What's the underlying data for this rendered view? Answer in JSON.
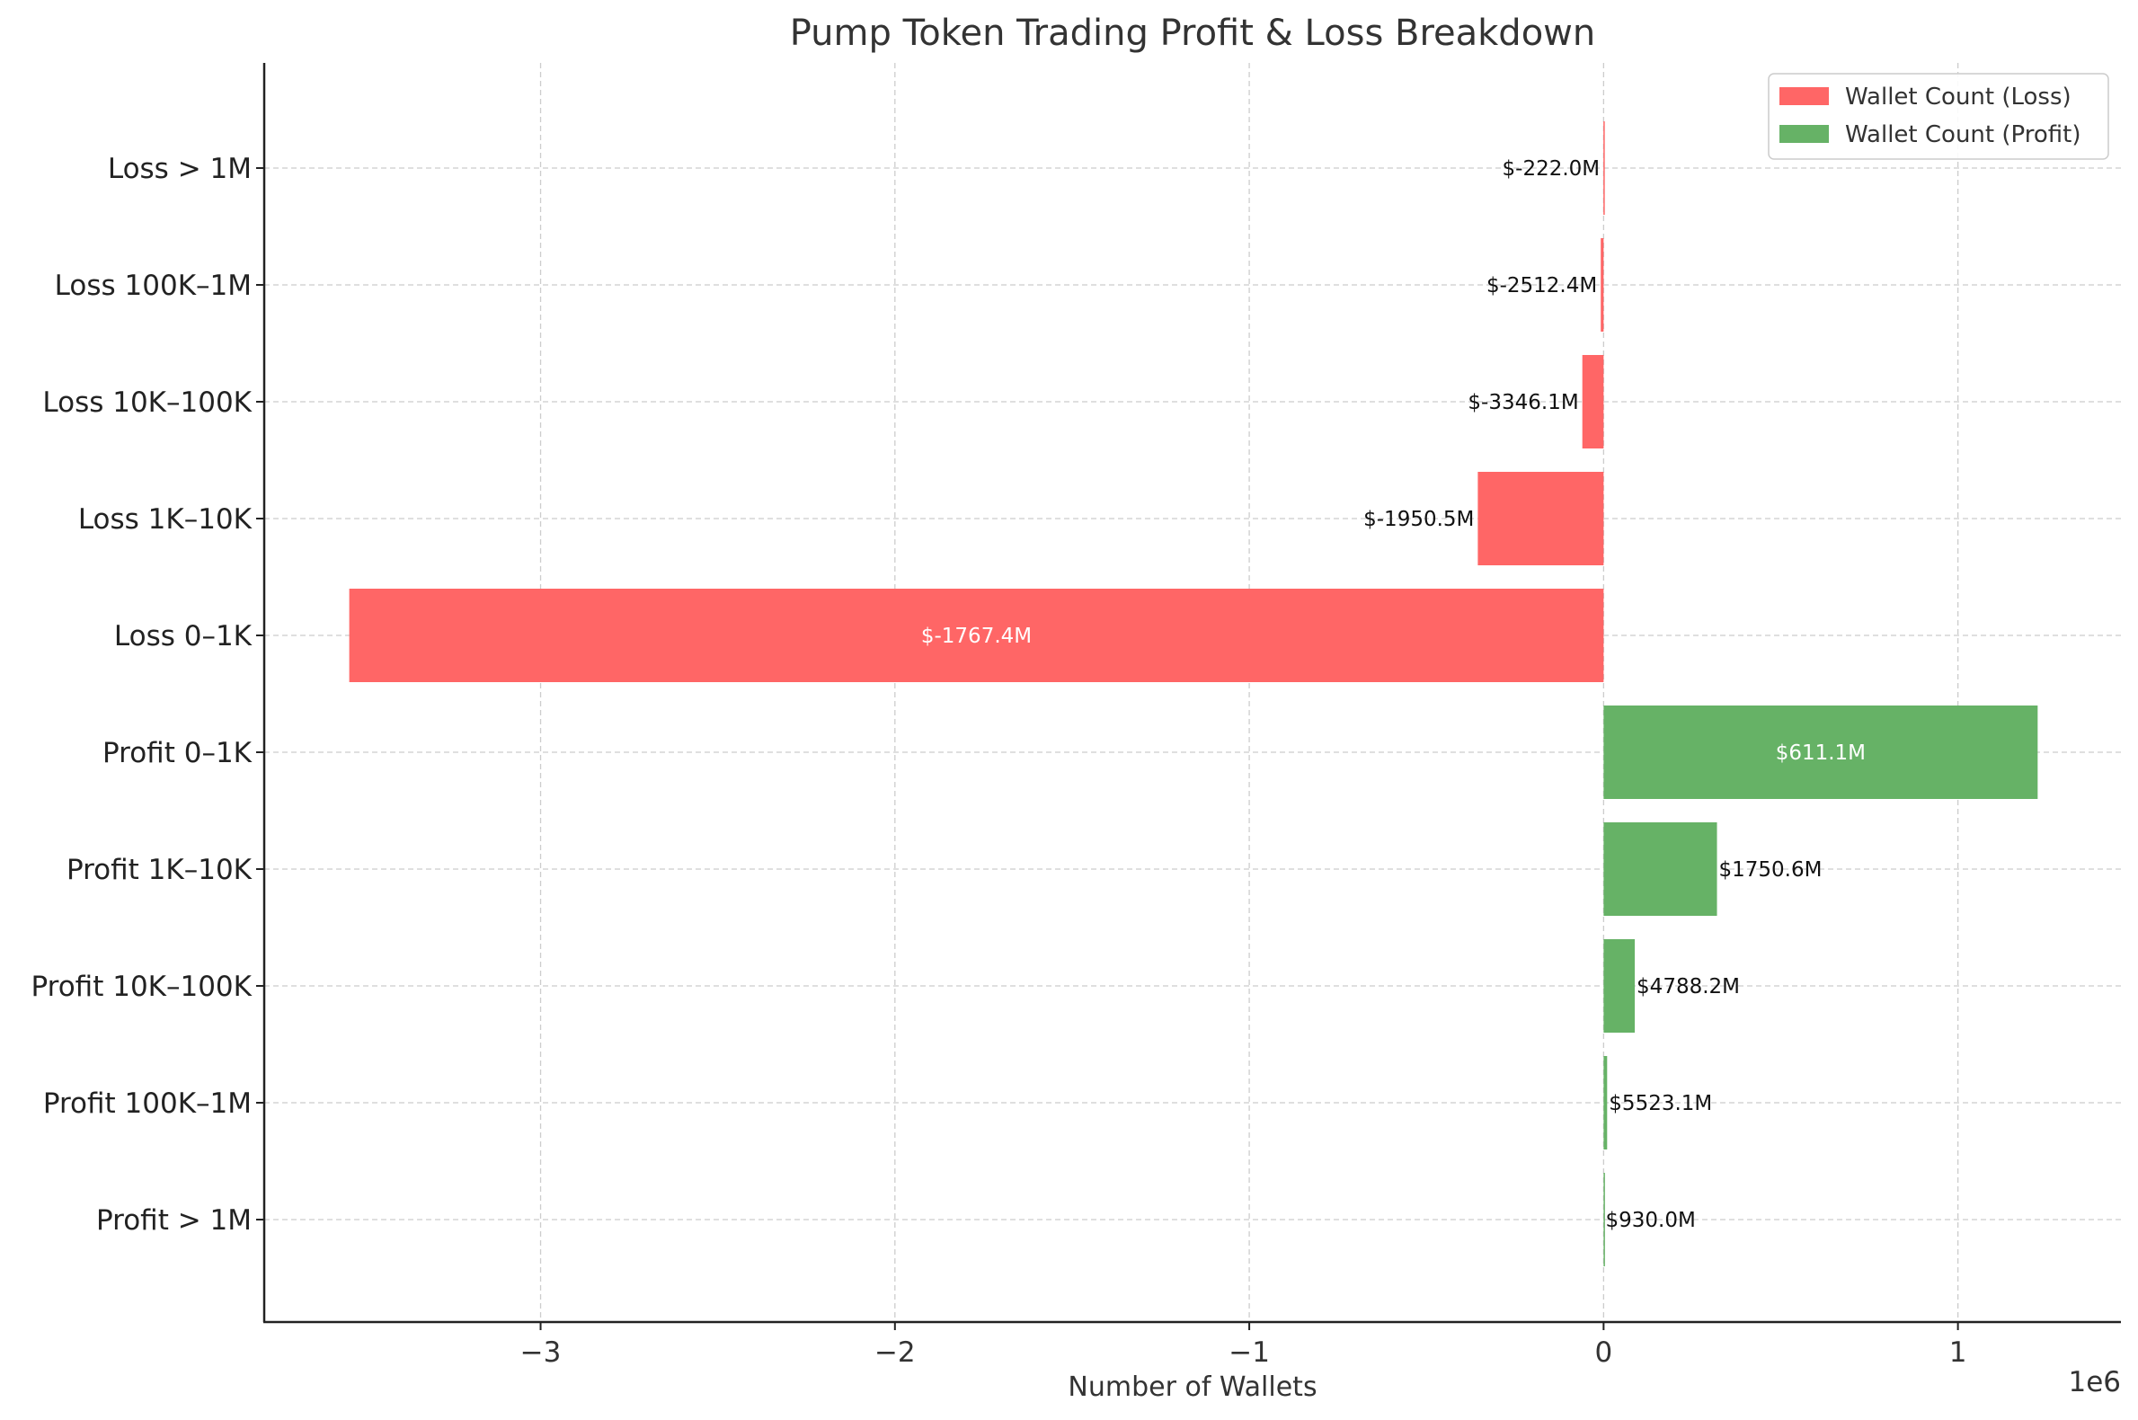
{
  "chart_data": {
    "type": "bar",
    "orientation": "horizontal",
    "title": "Pump Token Trading Profit & Loss Breakdown",
    "xlabel": "Number of Wallets",
    "ylabel": "",
    "x_offset_text": "1e6",
    "xlim": [
      -3780000,
      1460000
    ],
    "xticks": [
      -3000000,
      -2000000,
      -1000000,
      0,
      1000000
    ],
    "xtick_labels": [
      "−3",
      "−2",
      "−1",
      "0",
      "1"
    ],
    "grid": true,
    "legend_position": "top-right",
    "categories": [
      "Loss > 1M",
      "Loss 100K–1M",
      "Loss 10K–100K",
      "Loss 1K–10K",
      "Loss 0–1K",
      "Profit 0–1K",
      "Profit 1K–10K",
      "Profit 10K–100K",
      "Profit 100K–1M",
      "Profit > 1M"
    ],
    "series": [
      {
        "name": "Wallet Count (Loss)",
        "color": "#ff6666",
        "values": [
          -500,
          -8000,
          -60000,
          -355000,
          -3540000,
          null,
          null,
          null,
          null,
          null
        ],
        "labels": [
          "$-222.0M",
          "$-2512.4M",
          "$-3346.1M",
          "$-1950.5M",
          "$-1767.4M",
          null,
          null,
          null,
          null,
          null
        ]
      },
      {
        "name": "Wallet Count (Profit)",
        "color": "#66b266",
        "values": [
          null,
          null,
          null,
          null,
          null,
          1225000,
          320000,
          88000,
          10000,
          300
        ],
        "labels": [
          null,
          null,
          null,
          null,
          null,
          "$611.1M",
          "$1750.6M",
          "$4788.2M",
          "$5523.1M",
          "$930.0M"
        ]
      }
    ]
  }
}
